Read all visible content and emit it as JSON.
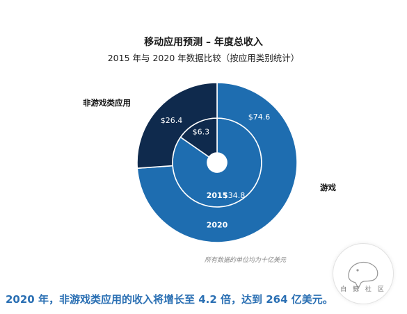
{
  "title": "移动应用预测 – 年度总收入",
  "subtitle": "2015 年与 2020 年数据比较（按应用类别统计）",
  "labels": {
    "non_game": "非游戏类应用",
    "game": "游戏"
  },
  "note": "所有数据的单位均为十亿美元",
  "headline": "2020 年，非游戏类应用的收入将增长至 4.2 倍，达到 264 亿美元。",
  "watermark": "白 鲸 社 区",
  "colors": {
    "game": "#1e6db0",
    "non_game": "#0f2a4d",
    "stroke": "#ffffff"
  },
  "chart_data": {
    "type": "pie",
    "title": "移动应用预测 – 年度总收入",
    "subtitle": "2015 年与 2020 年数据比较（按应用类别统计）",
    "unit": "十亿美元",
    "rings": [
      {
        "name": "2015",
        "slices": [
          {
            "category": "游戏",
            "value": 34.8,
            "label": "$34.8"
          },
          {
            "category": "非游戏类应用",
            "value": 6.3,
            "label": "$6.3"
          }
        ]
      },
      {
        "name": "2020",
        "slices": [
          {
            "category": "游戏",
            "value": 74.6,
            "label": "$74.6"
          },
          {
            "category": "非游戏类应用",
            "value": 26.4,
            "label": "$26.4"
          }
        ]
      }
    ]
  }
}
